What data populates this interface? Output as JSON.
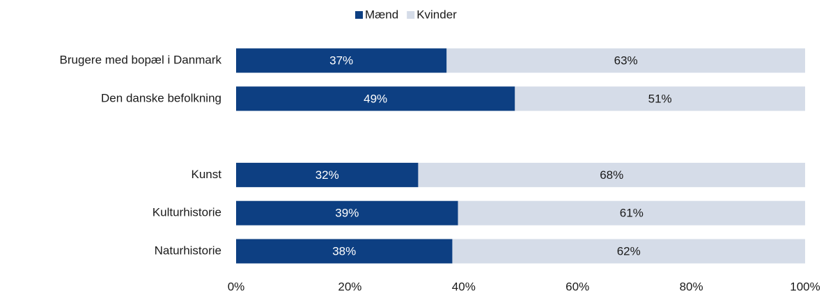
{
  "chart_data": {
    "type": "stacked_bar_horizontal",
    "categories": [
      "Brugere med bopæl i Danmark",
      "Den danske befolkning",
      null,
      "Kunst",
      "Kulturhistorie",
      "Naturhistorie"
    ],
    "series": [
      {
        "name": "Mænd",
        "color": "#0d3f82",
        "values": [
          37,
          49,
          null,
          32,
          39,
          38
        ],
        "value_labels": [
          "37%",
          "49%",
          null,
          "32%",
          "39%",
          "38%"
        ]
      },
      {
        "name": "Kvinder",
        "color": "#d5dce8",
        "values": [
          63,
          51,
          null,
          68,
          61,
          62
        ],
        "value_labels": [
          "63%",
          "51%",
          null,
          "68%",
          "61%",
          "62%"
        ]
      }
    ],
    "xlim": [
      0,
      100
    ],
    "xticks": [
      {
        "value": 0,
        "label": "0%"
      },
      {
        "value": 20,
        "label": "20%"
      },
      {
        "value": 40,
        "label": "40%"
      },
      {
        "value": 60,
        "label": "60%"
      },
      {
        "value": 80,
        "label": "80%"
      },
      {
        "value": 100,
        "label": "100%"
      }
    ],
    "legend": "top"
  }
}
